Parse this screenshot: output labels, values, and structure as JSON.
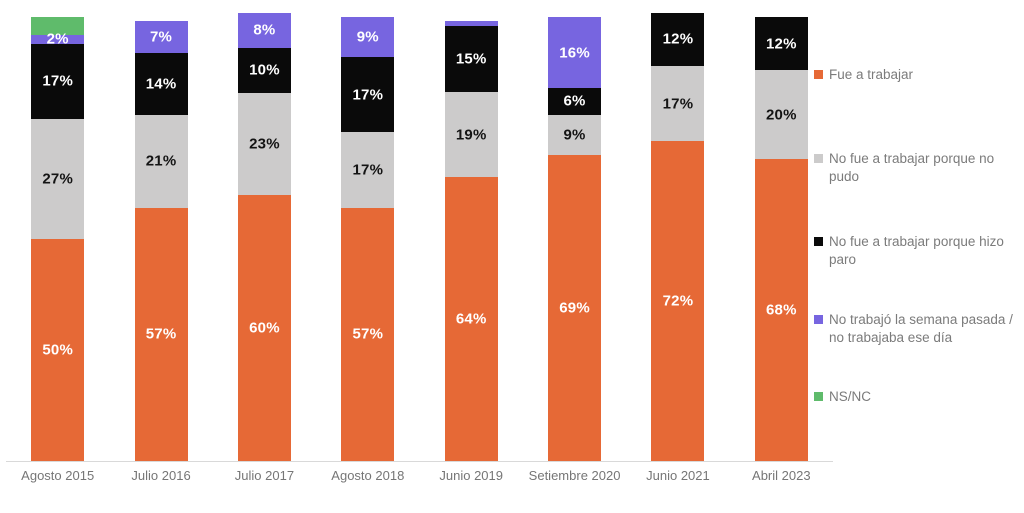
{
  "chart_data": {
    "type": "bar",
    "stacked": true,
    "orientation": "vertical",
    "title": "",
    "xlabel": "",
    "ylabel": "",
    "ylim": [
      0,
      100
    ],
    "grid": false,
    "unit": "%",
    "axis_line_color": "#D9D9D9",
    "tick_label_color": "#767676",
    "legend_position": "right",
    "categories": [
      "Agosto 2015",
      "Julio 2016",
      "Julio 2017",
      "Agosto 2018",
      "Junio 2019",
      "Setiembre 2020",
      "Junio 2021",
      "Abril 2023"
    ],
    "series": [
      {
        "name": "Fue a trabajar",
        "color": "#E66936",
        "label_color": "#FFFFFF",
        "values": [
          50,
          57,
          60,
          57,
          64,
          69,
          72,
          68
        ],
        "labels": [
          "50%",
          "57%",
          "60%",
          "57%",
          "64%",
          "69%",
          "72%",
          "68%"
        ]
      },
      {
        "name": "No fue a trabajar porque no pudo",
        "color": "#CCCBCB",
        "label_color": "#141414",
        "values": [
          27,
          21,
          23,
          17,
          19,
          9,
          17,
          20
        ],
        "labels": [
          "27%",
          "21%",
          "23%",
          "17%",
          "19%",
          "9%",
          "17%",
          "20%"
        ]
      },
      {
        "name": "No fue a trabajar porque hizo paro",
        "color": "#0A0A0A",
        "label_color": "#FFFFFF",
        "values": [
          17,
          14,
          10,
          17,
          15,
          6,
          12,
          12
        ],
        "labels": [
          "17%",
          "14%",
          "10%",
          "17%",
          "15%",
          "6%",
          "12%",
          "12%"
        ]
      },
      {
        "name": "No trabajó la semana pasada / no trabajaba ese día",
        "color": "#7765E0",
        "label_color": "#FFFFFF",
        "values": [
          2,
          7,
          8,
          9,
          1,
          16,
          0,
          0
        ],
        "labels": [
          "2%",
          "7%",
          "8%",
          "9%",
          "",
          "16%",
          "",
          ""
        ]
      },
      {
        "name": "NS/NC",
        "color": "#5FBB6B",
        "label_color": "#FFFFFF",
        "values": [
          4,
          0,
          0,
          0,
          0,
          0,
          0,
          0
        ],
        "labels": [
          "",
          "",
          "",
          "",
          "",
          "",
          "",
          ""
        ]
      }
    ],
    "legend_entries": [
      {
        "label": "Fue a trabajar",
        "color": "#E66936"
      },
      {
        "label": "No fue a trabajar porque no pudo",
        "color": "#CCCBCB"
      },
      {
        "label": "No fue a trabajar porque hizo paro",
        "color": "#0A0A0A"
      },
      {
        "label": "No trabajó la semana pasada / no trabajaba ese día",
        "color": "#7765E0"
      },
      {
        "label": "NS/NC",
        "color": "#5FBB6B"
      }
    ]
  }
}
